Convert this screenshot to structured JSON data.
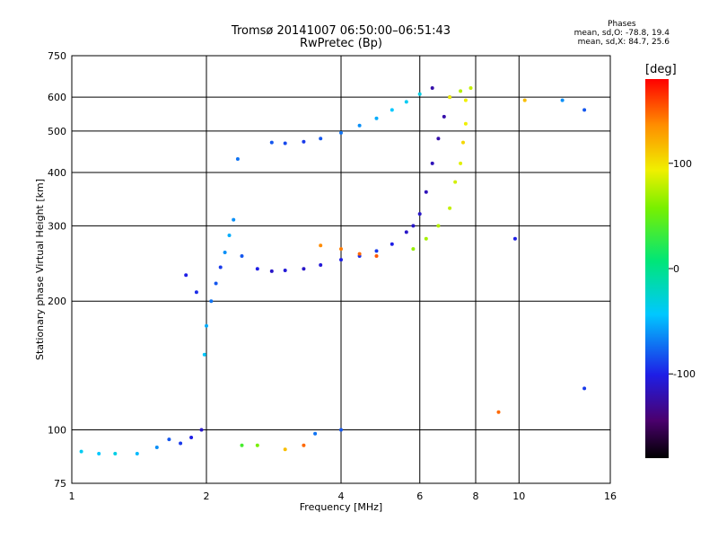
{
  "header": {
    "title": "Tromsø 20141007 06:50:00–06:51:43",
    "subtitle": "RwPretec (Bp)"
  },
  "phase_info": {
    "heading": "Phases",
    "line_o": "mean, sd,O:  -78.8, 19.4",
    "line_x": "mean, sd,X:  84.7, 25.6"
  },
  "colorbar": {
    "unit": "[deg]",
    "ticks": [
      "100",
      "0",
      "-100"
    ],
    "tick_values": [
      100,
      0,
      -100
    ],
    "range": [
      -180,
      180
    ]
  },
  "chart_data": {
    "type": "scatter",
    "xlabel": "Frequency [MHz]",
    "ylabel": "Stationary phase Virtual Height [km]",
    "x_scale": "log2",
    "y_scale": "log",
    "xlim": [
      1,
      16
    ],
    "ylim": [
      75,
      750
    ],
    "x_ticks": [
      1,
      2,
      4,
      6,
      8,
      10,
      16
    ],
    "x_tick_labels": [
      "1",
      "2",
      "4",
      "6",
      "8",
      "10",
      "16"
    ],
    "y_ticks": [
      75,
      100,
      200,
      300,
      400,
      500,
      600,
      750
    ],
    "y_tick_labels": [
      "75",
      "100",
      "200",
      "300",
      "400",
      "500",
      "600",
      "750"
    ],
    "grid": true,
    "series": [
      {
        "points": [
          [
            1.05,
            89,
            -35
          ],
          [
            1.15,
            88,
            -40
          ],
          [
            1.25,
            88,
            -30
          ],
          [
            1.4,
            88,
            -45
          ],
          [
            1.55,
            91,
            -60
          ],
          [
            1.65,
            95,
            -80
          ],
          [
            1.75,
            93,
            -90
          ],
          [
            1.85,
            96,
            -100
          ],
          [
            1.95,
            100,
            -110
          ],
          [
            1.98,
            150,
            -40
          ],
          [
            2.0,
            175,
            -50
          ],
          [
            2.05,
            200,
            -70
          ],
          [
            2.1,
            220,
            -80
          ],
          [
            2.15,
            240,
            -90
          ],
          [
            2.2,
            260,
            -60
          ],
          [
            2.25,
            285,
            -50
          ],
          [
            2.3,
            310,
            -60
          ],
          [
            2.35,
            430,
            -70
          ],
          [
            1.8,
            230,
            -100
          ],
          [
            1.9,
            210,
            -95
          ],
          [
            2.4,
            255,
            -80
          ],
          [
            2.6,
            238,
            -100
          ],
          [
            2.8,
            235,
            -110
          ],
          [
            3.0,
            236,
            -105
          ],
          [
            3.3,
            238,
            -110
          ],
          [
            3.6,
            243,
            -105
          ],
          [
            4.0,
            250,
            -100
          ],
          [
            4.4,
            255,
            -95
          ],
          [
            4.8,
            262,
            -90
          ],
          [
            5.2,
            272,
            -100
          ],
          [
            5.6,
            290,
            -110
          ],
          [
            5.8,
            300,
            -110
          ],
          [
            6.0,
            320,
            -110
          ],
          [
            6.2,
            360,
            -115
          ],
          [
            6.4,
            420,
            -115
          ],
          [
            6.6,
            480,
            -120
          ],
          [
            6.8,
            540,
            -120
          ],
          [
            7.0,
            600,
            -125
          ],
          [
            6.4,
            630,
            -120
          ],
          [
            2.8,
            470,
            -80
          ],
          [
            3.0,
            468,
            -85
          ],
          [
            3.3,
            472,
            -90
          ],
          [
            3.6,
            480,
            -80
          ],
          [
            4.0,
            495,
            -70
          ],
          [
            4.4,
            515,
            -60
          ],
          [
            4.8,
            535,
            -50
          ],
          [
            5.2,
            560,
            -40
          ],
          [
            5.6,
            585,
            -35
          ],
          [
            6.0,
            610,
            -30
          ],
          [
            3.6,
            270,
            140
          ],
          [
            4.0,
            265,
            145
          ],
          [
            4.4,
            258,
            150
          ],
          [
            4.8,
            255,
            155
          ],
          [
            5.8,
            265,
            70
          ],
          [
            6.2,
            280,
            75
          ],
          [
            6.6,
            300,
            80
          ],
          [
            7.0,
            330,
            85
          ],
          [
            7.2,
            380,
            90
          ],
          [
            7.4,
            420,
            95
          ],
          [
            7.5,
            470,
            110
          ],
          [
            7.6,
            520,
            100
          ],
          [
            7.0,
            600,
            100
          ],
          [
            7.4,
            620,
            80
          ],
          [
            7.6,
            590,
            100
          ],
          [
            7.8,
            630,
            85
          ],
          [
            2.4,
            92,
            40
          ],
          [
            2.6,
            92,
            60
          ],
          [
            3.0,
            90,
            120
          ],
          [
            3.3,
            92,
            150
          ],
          [
            4.0,
            100,
            -80
          ],
          [
            3.5,
            98,
            -70
          ],
          [
            10.3,
            590,
            120
          ],
          [
            12.5,
            590,
            -60
          ],
          [
            14.0,
            560,
            -80
          ],
          [
            14.0,
            125,
            -90
          ],
          [
            9.8,
            280,
            -100
          ],
          [
            9.0,
            110,
            150
          ]
        ]
      }
    ]
  }
}
